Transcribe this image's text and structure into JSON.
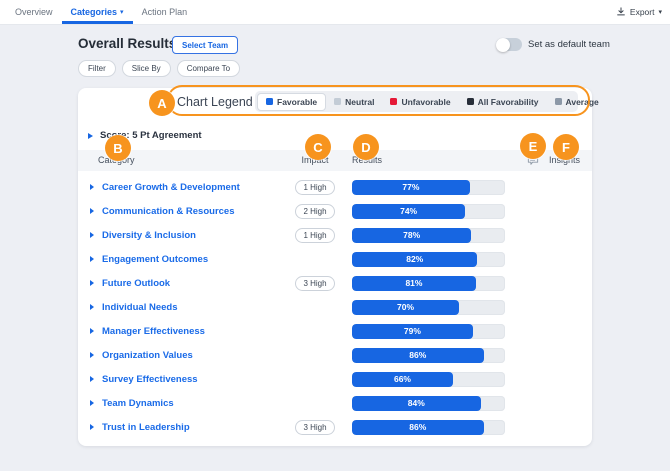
{
  "nav": {
    "tabs": [
      {
        "label": "Overview",
        "active": false
      },
      {
        "label": "Categories",
        "active": true
      },
      {
        "label": "Action Plan",
        "active": false
      }
    ],
    "export_label": "Export"
  },
  "header": {
    "title": "Overall Results",
    "select_team_label": "Select Team",
    "toggle_label": "Set as default team",
    "toggle_on": false
  },
  "filters": {
    "buttons": [
      "Filter",
      "Slice By",
      "Compare To"
    ]
  },
  "legend": {
    "title": "Chart Legend",
    "items": [
      {
        "label": "Favorable",
        "color": "#1766e2",
        "selected": true
      },
      {
        "label": "Neutral",
        "color": "#c3ccd6",
        "selected": false
      },
      {
        "label": "Unfavorable",
        "color": "#e51937",
        "selected": false
      },
      {
        "label": "All Favorability",
        "color": "#272e39",
        "selected": false
      },
      {
        "label": "Average",
        "color": "#8c98a7",
        "selected": false
      }
    ]
  },
  "annotations": {
    "color": "#f7941e",
    "labels": {
      "a": "A",
      "b": "B",
      "c": "C",
      "d": "D",
      "e": "E",
      "f": "F"
    }
  },
  "table": {
    "score_row_label": "Score: 5 Pt Agreement",
    "columns": {
      "category": "Category",
      "impact": "Impact",
      "results": "Results",
      "insights": "Insights"
    },
    "rows": [
      {
        "category": "Career Growth & Development",
        "impact": "1 High",
        "favorable_pct": 77,
        "favorable_label": "77%"
      },
      {
        "category": "Communication & Resources",
        "impact": "2 High",
        "favorable_pct": 74,
        "favorable_label": "74%"
      },
      {
        "category": "Diversity & Inclusion",
        "impact": "1 High",
        "favorable_pct": 78,
        "favorable_label": "78%"
      },
      {
        "category": "Engagement Outcomes",
        "impact": "",
        "favorable_pct": 82,
        "favorable_label": "82%"
      },
      {
        "category": "Future Outlook",
        "impact": "3 High",
        "favorable_pct": 81,
        "favorable_label": "81%"
      },
      {
        "category": "Individual Needs",
        "impact": "",
        "favorable_pct": 70,
        "favorable_label": "70%"
      },
      {
        "category": "Manager Effectiveness",
        "impact": "",
        "favorable_pct": 79,
        "favorable_label": "79%"
      },
      {
        "category": "Organization Values",
        "impact": "",
        "favorable_pct": 86,
        "favorable_label": "86%"
      },
      {
        "category": "Survey Effectiveness",
        "impact": "",
        "favorable_pct": 66,
        "favorable_label": "66%"
      },
      {
        "category": "Team Dynamics",
        "impact": "",
        "favorable_pct": 84,
        "favorable_label": "84%"
      },
      {
        "category": "Trust in Leadership",
        "impact": "3 High",
        "favorable_pct": 86,
        "favorable_label": "86%"
      }
    ]
  }
}
